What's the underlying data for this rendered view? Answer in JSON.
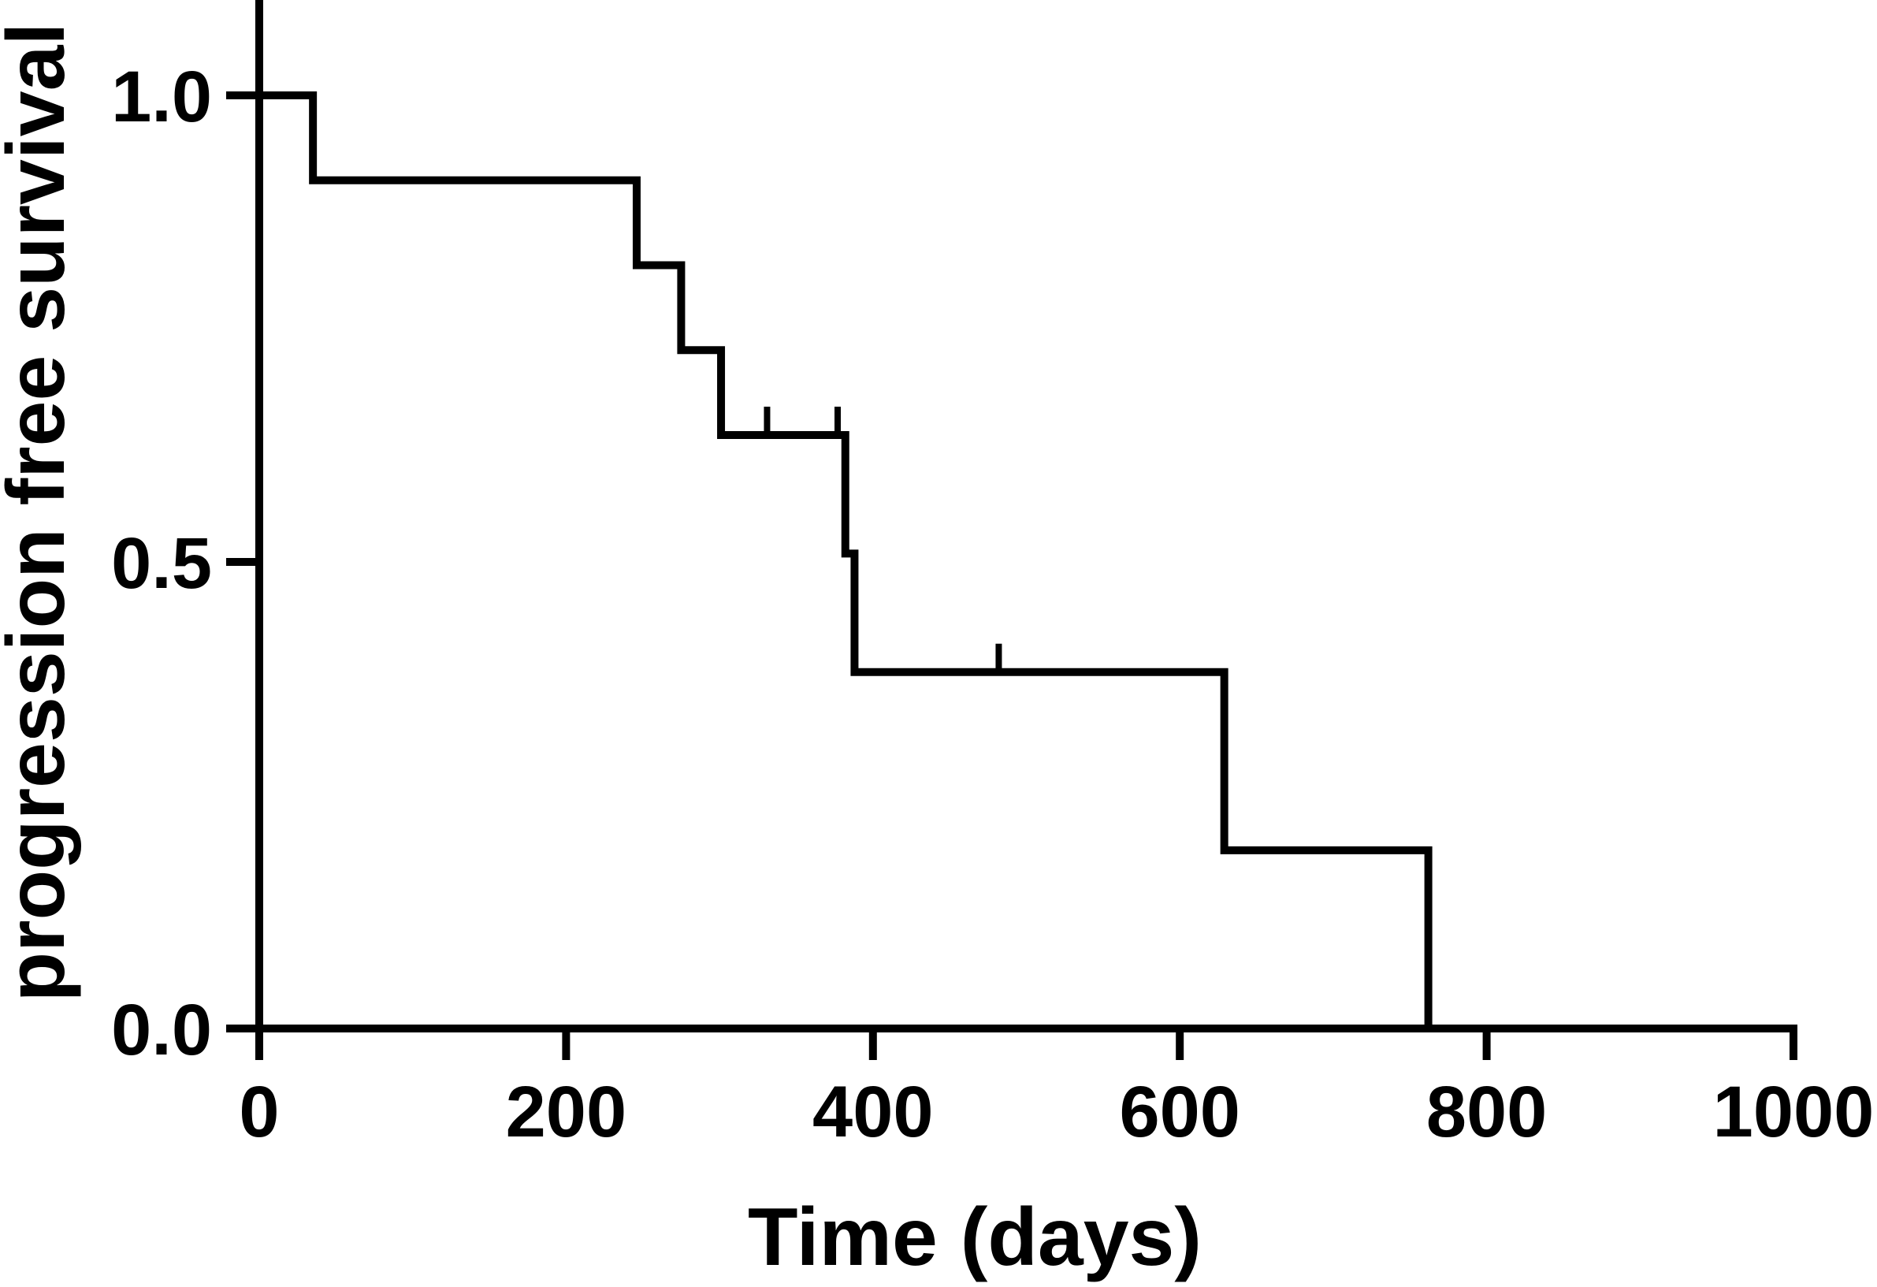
{
  "chart_data": {
    "type": "line",
    "subtype": "kaplan-meier step curve",
    "title": "",
    "xlabel": "Time (days)",
    "ylabel": "progression free survival",
    "xlim": [
      0,
      1000
    ],
    "ylim": [
      0,
      1.0
    ],
    "xticks": [
      "0",
      "200",
      "400",
      "600",
      "800",
      "1000"
    ],
    "yticks": [
      "0.0",
      "0.5",
      "1.0"
    ],
    "grid": false,
    "legend": "none",
    "line_color": "#000000",
    "series": [
      {
        "steps": [
          {
            "x": 0,
            "y": 1.0
          },
          {
            "x": 35,
            "y": 0.909
          },
          {
            "x": 246,
            "y": 0.818
          },
          {
            "x": 275,
            "y": 0.727
          },
          {
            "x": 301,
            "y": 0.636
          },
          {
            "x": 382,
            "y": 0.509
          },
          {
            "x": 388,
            "y": 0.382
          },
          {
            "x": 629,
            "y": 0.191
          },
          {
            "x": 762,
            "y": 0.0
          }
        ],
        "censored": [
          {
            "x": 331,
            "y": 0.636
          },
          {
            "x": 377,
            "y": 0.636
          },
          {
            "x": 482,
            "y": 0.382
          }
        ]
      }
    ]
  }
}
